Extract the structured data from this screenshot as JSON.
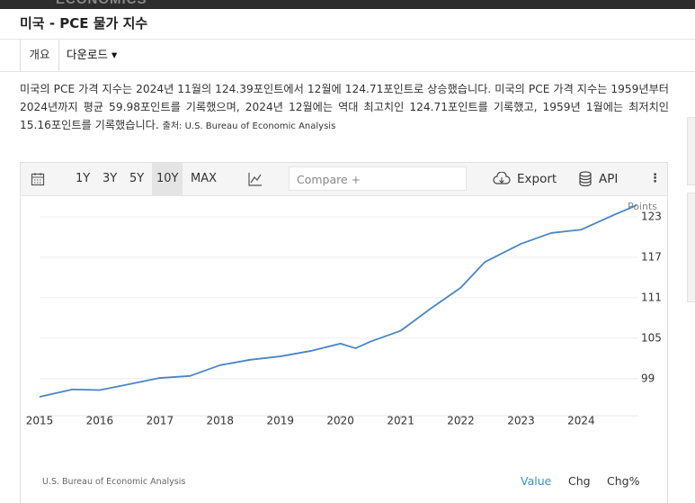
{
  "header": {
    "brand": "ECONOMICS",
    "title": "미국 - PCE 물가 지수"
  },
  "tabs": [
    "개요",
    "다운로드"
  ],
  "description": {
    "text": "미국의 PCE 가격 지수는 2024년 11월의 124.39포인트에서 12월에 124.71포인트로 상승했습니다. 미국의 PCE 가격 지수는 1959년부터 2024년까지 평균 59.98포인트를 기록했으며, 2024년 12월에는 역대 최고치인 124.71포인트를 기록했고, 1959년 1월에는 최저치인 15.16포인트를 기록했습니다.",
    "source": "출처: U.S. Bureau of Economic Analysis"
  },
  "toolbar": {
    "ranges": [
      "1Y",
      "3Y",
      "5Y",
      "10Y",
      "MAX"
    ],
    "compare": "Compare +",
    "export": "Export",
    "api": "API"
  },
  "chart_data": {
    "type": "line",
    "unit_label": "Points",
    "x": [
      2015.0,
      2015.55,
      2016.0,
      2016.45,
      2017.0,
      2017.5,
      2018.0,
      2018.5,
      2019.0,
      2019.5,
      2020.0,
      2020.25,
      2020.5,
      2021.0,
      2021.5,
      2022.0,
      2022.4,
      2023.0,
      2023.5,
      2024.0,
      2024.55,
      2024.92
    ],
    "series": [
      {
        "name": "PCE",
        "color": "#4a86c5",
        "values": [
          96.3,
          97.4,
          97.3,
          98.1,
          99.1,
          99.4,
          101.0,
          101.8,
          102.3,
          103.1,
          104.2,
          103.5,
          104.5,
          106.1,
          109.4,
          112.5,
          116.3,
          119.0,
          120.6,
          121.1,
          123.3,
          124.71
        ]
      }
    ],
    "xlim": [
      2015,
      2024.95
    ],
    "xticks": [
      2015,
      2016,
      2017,
      2018,
      2019,
      2020,
      2021,
      2022,
      2023,
      2024
    ],
    "ylim": [
      93.5,
      127
    ],
    "yticks": [
      99,
      105,
      111,
      117,
      123
    ],
    "grid": true
  },
  "chart_footer": {
    "source": "U.S. Bureau of Economic Analysis",
    "views": [
      "Value",
      "Chg",
      "Chg%"
    ]
  }
}
